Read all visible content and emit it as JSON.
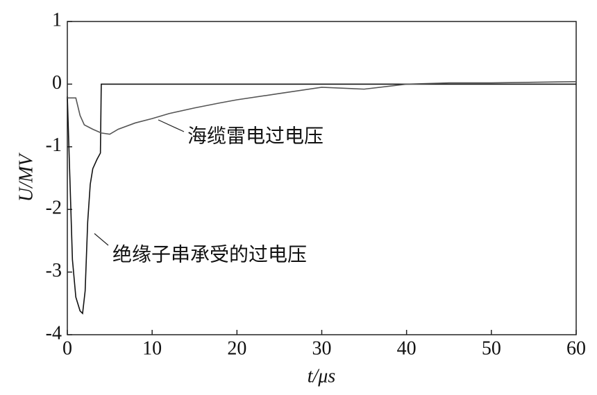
{
  "chart_data": {
    "type": "line",
    "x_label": "t/μs",
    "y_label": "U/MV",
    "xlim": [
      0,
      60
    ],
    "xticks": [
      0,
      10,
      20,
      30,
      40,
      50,
      60
    ],
    "ylim": [
      -4,
      1
    ],
    "yticks": [
      -4,
      -3,
      -2,
      -1,
      0,
      1
    ],
    "series": [
      {
        "name": "绝缘子串承受的过电压",
        "color": "#111111",
        "x": [
          0,
          0.3,
          0.6,
          1,
          1.5,
          1.8,
          2.1,
          2.4,
          2.7,
          3,
          3.5,
          3.9,
          4,
          60
        ],
        "values": [
          -0.2,
          -1.5,
          -2.8,
          -3.4,
          -3.62,
          -3.66,
          -3.3,
          -2.2,
          -1.6,
          -1.35,
          -1.2,
          -1.1,
          0,
          0
        ]
      },
      {
        "name": "海缆雷电过电压",
        "color": "#555555",
        "x": [
          0,
          1,
          1.5,
          2,
          3,
          4,
          5,
          6,
          8,
          10,
          12,
          15,
          18,
          20,
          25,
          30,
          35,
          40,
          45,
          50,
          55,
          60
        ],
        "values": [
          -0.22,
          -0.22,
          -0.5,
          -0.65,
          -0.72,
          -0.78,
          -0.8,
          -0.72,
          -0.62,
          -0.55,
          -0.47,
          -0.38,
          -0.3,
          -0.25,
          -0.15,
          -0.05,
          -0.08,
          0,
          0.02,
          0.02,
          0.03,
          0.04
        ]
      }
    ]
  }
}
